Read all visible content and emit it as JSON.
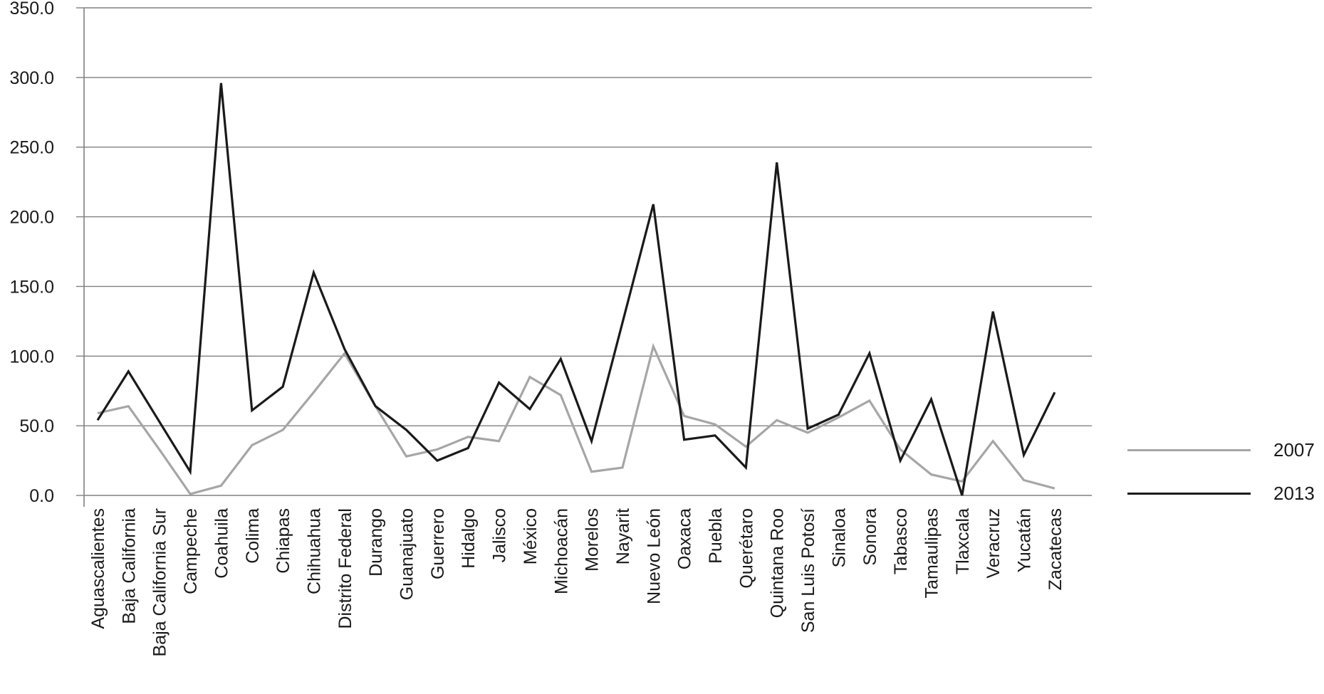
{
  "chart_data": {
    "type": "line",
    "title": "",
    "xlabel": "",
    "ylabel": "",
    "categories": [
      "Aguascalientes",
      "Baja California",
      "Baja California Sur",
      "Campeche",
      "Coahuila",
      "Colima",
      "Chiapas",
      "Chihuahua",
      "Distrito Federal",
      "Durango",
      "Guanajuato",
      "Guerrero",
      "Hidalgo",
      "Jalisco",
      "México",
      "Michoacán",
      "Morelos",
      "Nayarit",
      "Nuevo León",
      "Oaxaca",
      "Puebla",
      "Querétaro",
      "Quintana Roo",
      "San Luis Potosí",
      "Sinaloa",
      "Sonora",
      "Tabasco",
      "Tamaulipas",
      "Tlaxcala",
      "Veracruz",
      "Yucatán",
      "Zacatecas"
    ],
    "series": [
      {
        "name": "2007",
        "color": "#a6a6a6",
        "values": [
          59,
          64,
          33,
          1,
          7,
          36,
          47,
          74,
          102,
          64,
          28,
          33,
          42,
          39,
          85,
          72,
          17,
          20,
          107,
          57,
          51,
          35,
          54,
          45,
          56,
          68,
          33,
          15,
          10,
          39,
          11,
          5
        ]
      },
      {
        "name": "2013",
        "color": "#1a1a1a",
        "values": [
          54,
          89,
          53,
          17,
          296,
          61,
          78,
          160,
          105,
          64,
          47,
          25,
          34,
          81,
          62,
          98,
          39,
          124,
          209,
          40,
          43,
          20,
          239,
          48,
          58,
          102,
          25,
          69,
          0,
          132,
          29,
          74
        ]
      }
    ],
    "ylim": [
      0,
      350
    ],
    "ytick_step": 50,
    "ytick_labels": [
      "0.0",
      "50.0",
      "100.0",
      "150.0",
      "200.0",
      "250.0",
      "300.0",
      "350.0"
    ],
    "grid": true,
    "legend_position": "right",
    "axis_color": "#808080",
    "label_color": "#1a1a1a"
  }
}
